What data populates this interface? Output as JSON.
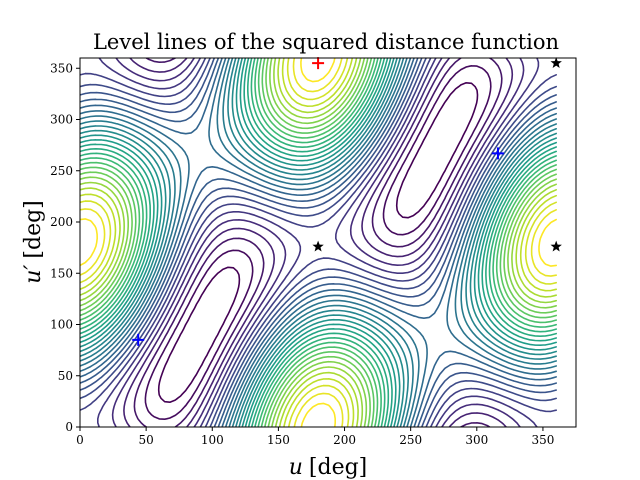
{
  "chart_data": {
    "type": "contour",
    "title": "Level lines of the squared distance function",
    "xlabel_var": "u",
    "xlabel_unit": "[deg]",
    "ylabel_var": "u′",
    "ylabel_unit": "[deg]",
    "xlim": [
      0,
      375
    ],
    "ylim": [
      0,
      360
    ],
    "xticks": [
      0,
      50,
      100,
      150,
      200,
      250,
      300,
      350
    ],
    "yticks": [
      0,
      50,
      100,
      150,
      200,
      250,
      300,
      350
    ],
    "xtick_labels": [
      "0",
      "50",
      "100",
      "150",
      "200",
      "250",
      "300",
      "350"
    ],
    "ytick_labels": [
      "0",
      "50",
      "100",
      "150",
      "200",
      "250",
      "300",
      "350"
    ],
    "grid": false,
    "colormap": "viridis",
    "level_count": 32,
    "markers": [
      {
        "kind": "plus",
        "color": "#ff0000",
        "x": 180,
        "y": 355
      },
      {
        "kind": "plus",
        "color": "#0000ff",
        "x": 44,
        "y": 85
      },
      {
        "kind": "plus",
        "color": "#0000ff",
        "x": 316,
        "y": 267
      },
      {
        "kind": "star",
        "color": "#000000",
        "x": 180,
        "y": 176
      },
      {
        "kind": "star",
        "color": "#000000",
        "x": 360,
        "y": 176
      },
      {
        "kind": "star",
        "color": "#000000",
        "x": 360,
        "y": 355
      }
    ]
  }
}
